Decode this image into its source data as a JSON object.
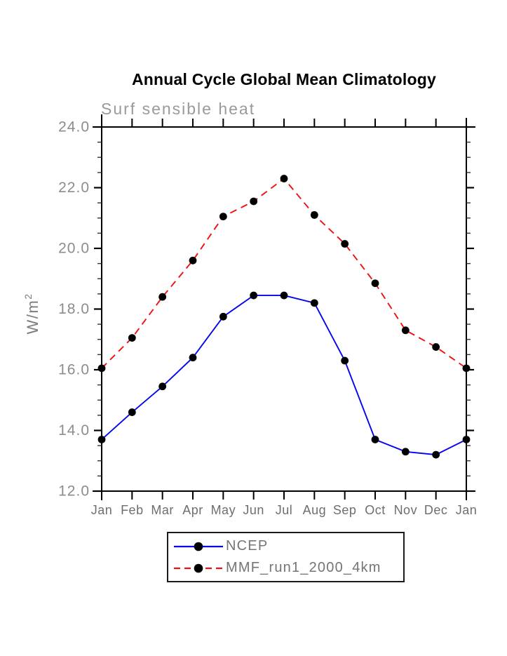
{
  "title": "Annual Cycle Global Mean Climatology",
  "subtitle": "Surf sensible heat",
  "chart_data": {
    "type": "line",
    "categories": [
      "Jan",
      "Feb",
      "Mar",
      "Apr",
      "May",
      "Jun",
      "Jul",
      "Aug",
      "Sep",
      "Oct",
      "Nov",
      "Dec",
      "Jan"
    ],
    "series": [
      {
        "name": "NCEP",
        "color": "#0505ee",
        "line_style": "solid",
        "marker": "filled-circle",
        "marker_color": "#000000",
        "values": [
          13.7,
          14.6,
          15.45,
          16.4,
          17.75,
          18.45,
          18.45,
          18.2,
          16.3,
          13.7,
          13.3,
          13.2,
          13.7
        ]
      },
      {
        "name": "MMF_run1_2000_4km",
        "color": "#f01010",
        "line_style": "dashed",
        "marker": "filled-circle",
        "marker_color": "#000000",
        "values": [
          16.05,
          17.05,
          18.4,
          19.6,
          21.05,
          21.55,
          22.3,
          21.1,
          20.15,
          18.85,
          17.3,
          16.75,
          16.05
        ]
      }
    ],
    "xlabel": "",
    "ylabel": "W/m",
    "ylabel_superscript": "2",
    "ylim": [
      12.0,
      24.0
    ],
    "ytick_step": 2.0,
    "ytick_minor_step": 0.5,
    "ytick_labels": [
      "12.0",
      "14.0",
      "16.0",
      "18.0",
      "20.0",
      "22.0",
      "24.0"
    ],
    "grid": false,
    "frame": "box-with-outward-ticks",
    "legend_position": "bottom-center",
    "axis_color": "#000000",
    "tick_label_color": "#6e6e6e"
  }
}
